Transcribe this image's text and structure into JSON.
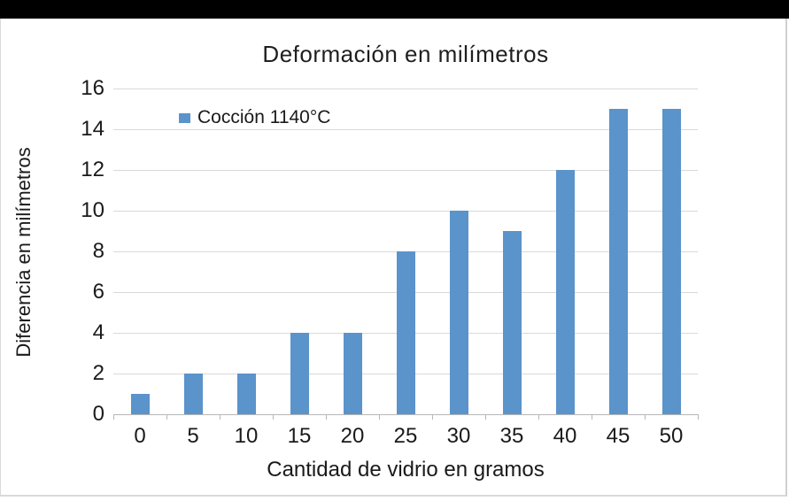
{
  "chart_data": {
    "type": "bar",
    "title": "Deformación en milímetros",
    "xlabel": "Cantidad de vidrio en gramos",
    "ylabel": "Diferencia en milímetros",
    "categories": [
      "0",
      "5",
      "10",
      "15",
      "20",
      "25",
      "30",
      "35",
      "40",
      "45",
      "50"
    ],
    "series": [
      {
        "name": "Cocción 1140°C",
        "values": [
          1,
          2,
          2,
          4,
          4,
          8,
          10,
          9,
          12,
          15,
          15
        ],
        "color": "#5b93cb"
      }
    ],
    "legend": [
      {
        "label": "Cocción 1140°C",
        "color": "#5b93cb"
      }
    ],
    "legend_position": "top-left-inside",
    "ylim": [
      0,
      16
    ],
    "yticks": [
      0,
      2,
      4,
      6,
      8,
      10,
      12,
      14,
      16
    ],
    "grid": true,
    "colors": {
      "bar": "#5b93cb",
      "gridline": "#d9d9d9",
      "axis_line": "#b7b7b7",
      "text": "#1a1a1a",
      "top_bar": "#000000"
    }
  }
}
